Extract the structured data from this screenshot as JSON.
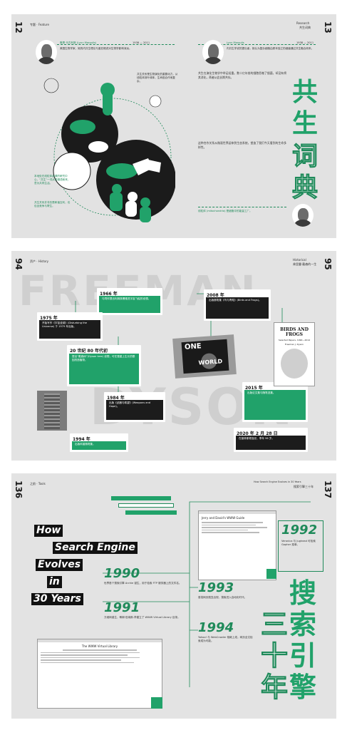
{
  "spread1": {
    "page_left": "12",
    "page_right": "13",
    "header_left": "专题 · Feature",
    "header_right_1": "Research",
    "header_right_2": "共生词典",
    "bio_left": "琳恩·马古利斯 (Lynn Margulis)",
    "bio_left_years": "1938 — 2011",
    "bio_left_text": "美国生物学家，她的内共生理论与盖亚假说对生物学影响深远。",
    "bio_right": "Lynn Margulis",
    "bio_right_years": "1938 — 2011",
    "bio_right_text": "内共生学说的提出者，她认为复杂细胞由原本独立的细菌通过共生融合而来。",
    "quote_left": "共生关系是生物演化的重要动力，从线粒体到叶绿体，生命因合作而复杂。",
    "green_note": "本地处在线粒体起源的研究中心，“共生”一词从希腊语而来，意为共同生活。",
    "green_note_2": "共生关系并非总是和谐互利，也包含竞争与寄生。",
    "title_cn": "共生词典",
    "body_cn_1": "共生在演化生物学中举足轻重。数十亿年前的细胞吞噬了细菌，却没有将其消化，两者从此长期共存。",
    "body_cn_2": "这种合作关系从微观世界延伸到生态系统，塑造了我们今天看到的生命多样性。",
    "footnote": "线粒体 (mitochondria) 是细胞中的能量工厂。"
  },
  "spread2": {
    "page_left": "94",
    "page_right": "95",
    "header_left": "资产 · History",
    "header_right_1": "Historical",
    "header_right_2": "弗里曼·戴森的一生",
    "bg_word_1": "FREEMAN",
    "bg_word_2": "DYSON",
    "cards": [
      {
        "year": "1966 年",
        "text": "与同伴提出利用核爆推进宇宙飞船的设想。",
        "style": "green"
      },
      {
        "year": "1975 年",
        "text": "开始写作《宇宙波澜》(Disturbing the Universe) 于 1979 年出版。",
        "style": "black"
      },
      {
        "year": "20 世纪 80 年代初",
        "text": "提出“戴森树”(Dyson tree) 设想，可在彗星上生长的基因改造植物。",
        "style": "green"
      },
      {
        "year": "1984 年",
        "text": "出版《武器与希望》(Weapons and Hope)。",
        "style": "black"
      },
      {
        "year": "1994 年",
        "text": "出版科普随笔集。",
        "style": "green"
      },
      {
        "year": "2008 年",
        "text": "出版随笔集《鸟与青蛙》(Birds and Frogs)。",
        "style": "black"
      },
      {
        "year": "2015 年",
        "text": "出版论文集与随笔选集。",
        "style": "green"
      },
      {
        "year": "2020 年 2 月 28 日",
        "text": "在普林斯顿逝世，享年 96 岁。",
        "style": "black"
      }
    ],
    "book_title": "BIRDS AND FROGS",
    "book_subtitle": "Selected Papers, 1990—2014",
    "book_author": "Freeman J. Dyson",
    "poster_1": "ONE",
    "poster_2": "WORLD"
  },
  "spread3": {
    "page_left": "136",
    "page_right": "137",
    "header_left": "之前 · Tools",
    "header_right_1": "How Search Engine Evolves in 30 Years",
    "header_right_2": "搜索引擎三十年",
    "title_lines": [
      "How",
      "Search Engine",
      "Evolves",
      "in",
      "30 Years"
    ],
    "years": [
      {
        "year": "1990",
        "text": "世界首个搜索引擎 Archie 诞生，用于检索 FTP 服务器上的文件名。"
      },
      {
        "year": "1991",
        "text": "万维网诞生，蒂姆·伯纳斯-李建立了 WWW Virtual Library 目录。"
      },
      {
        "year": "1992",
        "text": "Veronica 与 Jughead 可检索 Gopher 菜单。"
      },
      {
        "year": "1993",
        "text": "首批网页爬虫出现，搜索进入自动化时代。"
      },
      {
        "year": "1994",
        "text": "Yahoo! 与 WebCrawler 相继上线，网页全文检索成为可能。"
      }
    ],
    "shot_title_1": "Jerry and David's WWW Guide",
    "shot_title_2": "The WWW Virtual Library",
    "title_cn": "搜索引擎三十年",
    "cn_1": "搜索",
    "cn_2": "引擎",
    "cn_3": "三十",
    "cn_4": "年"
  },
  "colors": {
    "green": "#21a26a",
    "black": "#1c1c1c",
    "panel": "#e3e3e3"
  }
}
